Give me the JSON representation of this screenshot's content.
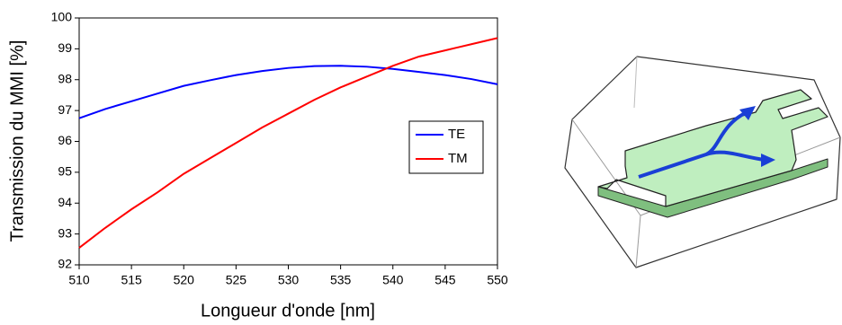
{
  "chart_data": {
    "type": "line",
    "xlabel": "Longueur d'onde [nm]",
    "ylabel": "Transmission du MMI [%]",
    "x": [
      510,
      512.5,
      515,
      517.5,
      520,
      522.5,
      525,
      527.5,
      530,
      532.5,
      535,
      537.5,
      540,
      542.5,
      545,
      547.5,
      550
    ],
    "series": [
      {
        "name": "TE",
        "color": "#0000ff",
        "values": [
          96.75,
          97.05,
          97.3,
          97.55,
          97.8,
          97.98,
          98.15,
          98.28,
          98.38,
          98.44,
          98.45,
          98.42,
          98.35,
          98.25,
          98.15,
          98.02,
          97.85
        ]
      },
      {
        "name": "TM",
        "color": "#ff0000",
        "values": [
          92.55,
          93.2,
          93.8,
          94.35,
          94.95,
          95.45,
          95.95,
          96.45,
          96.9,
          97.35,
          97.75,
          98.1,
          98.45,
          98.75,
          98.95,
          99.15,
          99.35
        ]
      }
    ],
    "xlim": [
      510,
      550
    ],
    "xticks": [
      510,
      515,
      520,
      525,
      530,
      535,
      540,
      545,
      550
    ],
    "ylim": [
      92,
      100
    ],
    "yticks": [
      92,
      93,
      94,
      95,
      96,
      97,
      98,
      99,
      100
    ],
    "legend": "right"
  }
}
